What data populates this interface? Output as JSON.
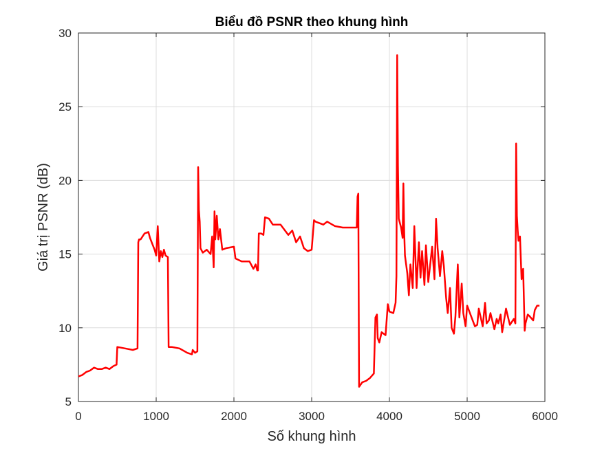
{
  "chart_data": {
    "type": "line",
    "title": "Biểu đồ PSNR theo khung hình",
    "xlabel": "Số khung hình",
    "ylabel": "Giá trị PSNR (dB)",
    "xlim": [
      0,
      6000
    ],
    "ylim": [
      5,
      30
    ],
    "xticks": [
      0,
      1000,
      2000,
      3000,
      4000,
      5000,
      6000
    ],
    "yticks": [
      5,
      10,
      15,
      20,
      25,
      30
    ],
    "xtick_labels": [
      "0",
      "1000",
      "2000",
      "3000",
      "4000",
      "5000",
      "6000"
    ],
    "ytick_labels": [
      "5",
      "10",
      "15",
      "20",
      "25",
      "30"
    ],
    "grid": true,
    "series": [
      {
        "color": "#ff0000",
        "x": [
          0,
          50,
          100,
          150,
          200,
          250,
          300,
          350,
          400,
          450,
          490,
          500,
          600,
          700,
          760,
          770,
          780,
          800,
          850,
          900,
          920,
          950,
          980,
          1000,
          1020,
          1040,
          1060,
          1080,
          1100,
          1120,
          1150,
          1160,
          1200,
          1300,
          1400,
          1460,
          1470,
          1500,
          1530,
          1540,
          1550,
          1560,
          1570,
          1580,
          1600,
          1650,
          1700,
          1720,
          1740,
          1750,
          1760,
          1780,
          1800,
          1820,
          1850,
          1900,
          2000,
          2020,
          2100,
          2200,
          2250,
          2280,
          2300,
          2310,
          2320,
          2350,
          2380,
          2400,
          2450,
          2500,
          2600,
          2700,
          2750,
          2800,
          2850,
          2900,
          2950,
          3000,
          3030,
          3050,
          3100,
          3150,
          3200,
          3300,
          3400,
          3500,
          3580,
          3590,
          3600,
          3610,
          3650,
          3700,
          3750,
          3800,
          3820,
          3840,
          3850,
          3870,
          3900,
          3950,
          3980,
          4000,
          4050,
          4080,
          4090,
          4100,
          4110,
          4120,
          4150,
          4170,
          4180,
          4190,
          4200,
          4230,
          4250,
          4270,
          4300,
          4320,
          4350,
          4380,
          4400,
          4420,
          4450,
          4470,
          4500,
          4550,
          4580,
          4600,
          4620,
          4650,
          4680,
          4700,
          4730,
          4750,
          4780,
          4800,
          4830,
          4850,
          4880,
          4900,
          4930,
          4950,
          4980,
          5000,
          5050,
          5100,
          5130,
          5150,
          5200,
          5230,
          5250,
          5280,
          5300,
          5350,
          5380,
          5400,
          5430,
          5450,
          5500,
          5550,
          5600,
          5620,
          5630,
          5640,
          5650,
          5660,
          5680,
          5700,
          5720,
          5740,
          5750,
          5780,
          5800,
          5850,
          5870,
          5900,
          5930
        ],
        "y": [
          6.7,
          6.8,
          7.0,
          7.1,
          7.3,
          7.2,
          7.2,
          7.3,
          7.2,
          7.4,
          7.5,
          8.7,
          8.6,
          8.5,
          8.6,
          15.8,
          16.0,
          16.0,
          16.4,
          16.5,
          16.1,
          15.7,
          15.3,
          14.9,
          16.9,
          14.5,
          15.2,
          14.8,
          15.3,
          14.9,
          14.8,
          8.7,
          8.7,
          8.6,
          8.3,
          8.2,
          8.5,
          8.3,
          8.4,
          20.9,
          18.0,
          17.2,
          15.4,
          15.3,
          15.1,
          15.3,
          15.0,
          16.2,
          14.1,
          17.9,
          16.0,
          17.6,
          16.0,
          16.7,
          15.3,
          15.4,
          15.5,
          14.7,
          14.5,
          14.5,
          14.0,
          14.3,
          13.9,
          13.9,
          16.4,
          16.4,
          16.3,
          17.5,
          17.4,
          17.0,
          17.0,
          16.3,
          16.6,
          15.8,
          16.2,
          15.4,
          15.2,
          15.3,
          17.3,
          17.2,
          17.1,
          17.0,
          17.2,
          16.9,
          16.8,
          16.8,
          16.8,
          18.9,
          19.1,
          6.0,
          6.3,
          6.4,
          6.6,
          6.9,
          10.7,
          10.9,
          9.3,
          9.0,
          9.7,
          9.5,
          11.6,
          11.1,
          11.0,
          11.7,
          13.5,
          28.5,
          21.0,
          17.4,
          16.8,
          16.1,
          19.8,
          16.5,
          14.9,
          13.7,
          12.2,
          14.3,
          12.7,
          16.9,
          12.7,
          15.8,
          13.4,
          15.2,
          12.9,
          15.6,
          13.1,
          15.5,
          13.3,
          17.4,
          15.4,
          13.5,
          15.2,
          14.2,
          12.0,
          11.0,
          12.7,
          10.0,
          9.6,
          10.8,
          14.3,
          10.7,
          13.0,
          11.0,
          10.1,
          11.5,
          10.8,
          10.1,
          10.2,
          11.3,
          10.1,
          11.7,
          10.3,
          10.5,
          11.0,
          9.9,
          10.6,
          10.3,
          10.9,
          9.7,
          11.3,
          10.2,
          10.6,
          10.3,
          22.5,
          17.6,
          16.6,
          15.9,
          16.2,
          13.3,
          14.0,
          9.8,
          10.3,
          10.9,
          10.8,
          10.5,
          11.2,
          11.5,
          11.5
        ]
      }
    ]
  }
}
